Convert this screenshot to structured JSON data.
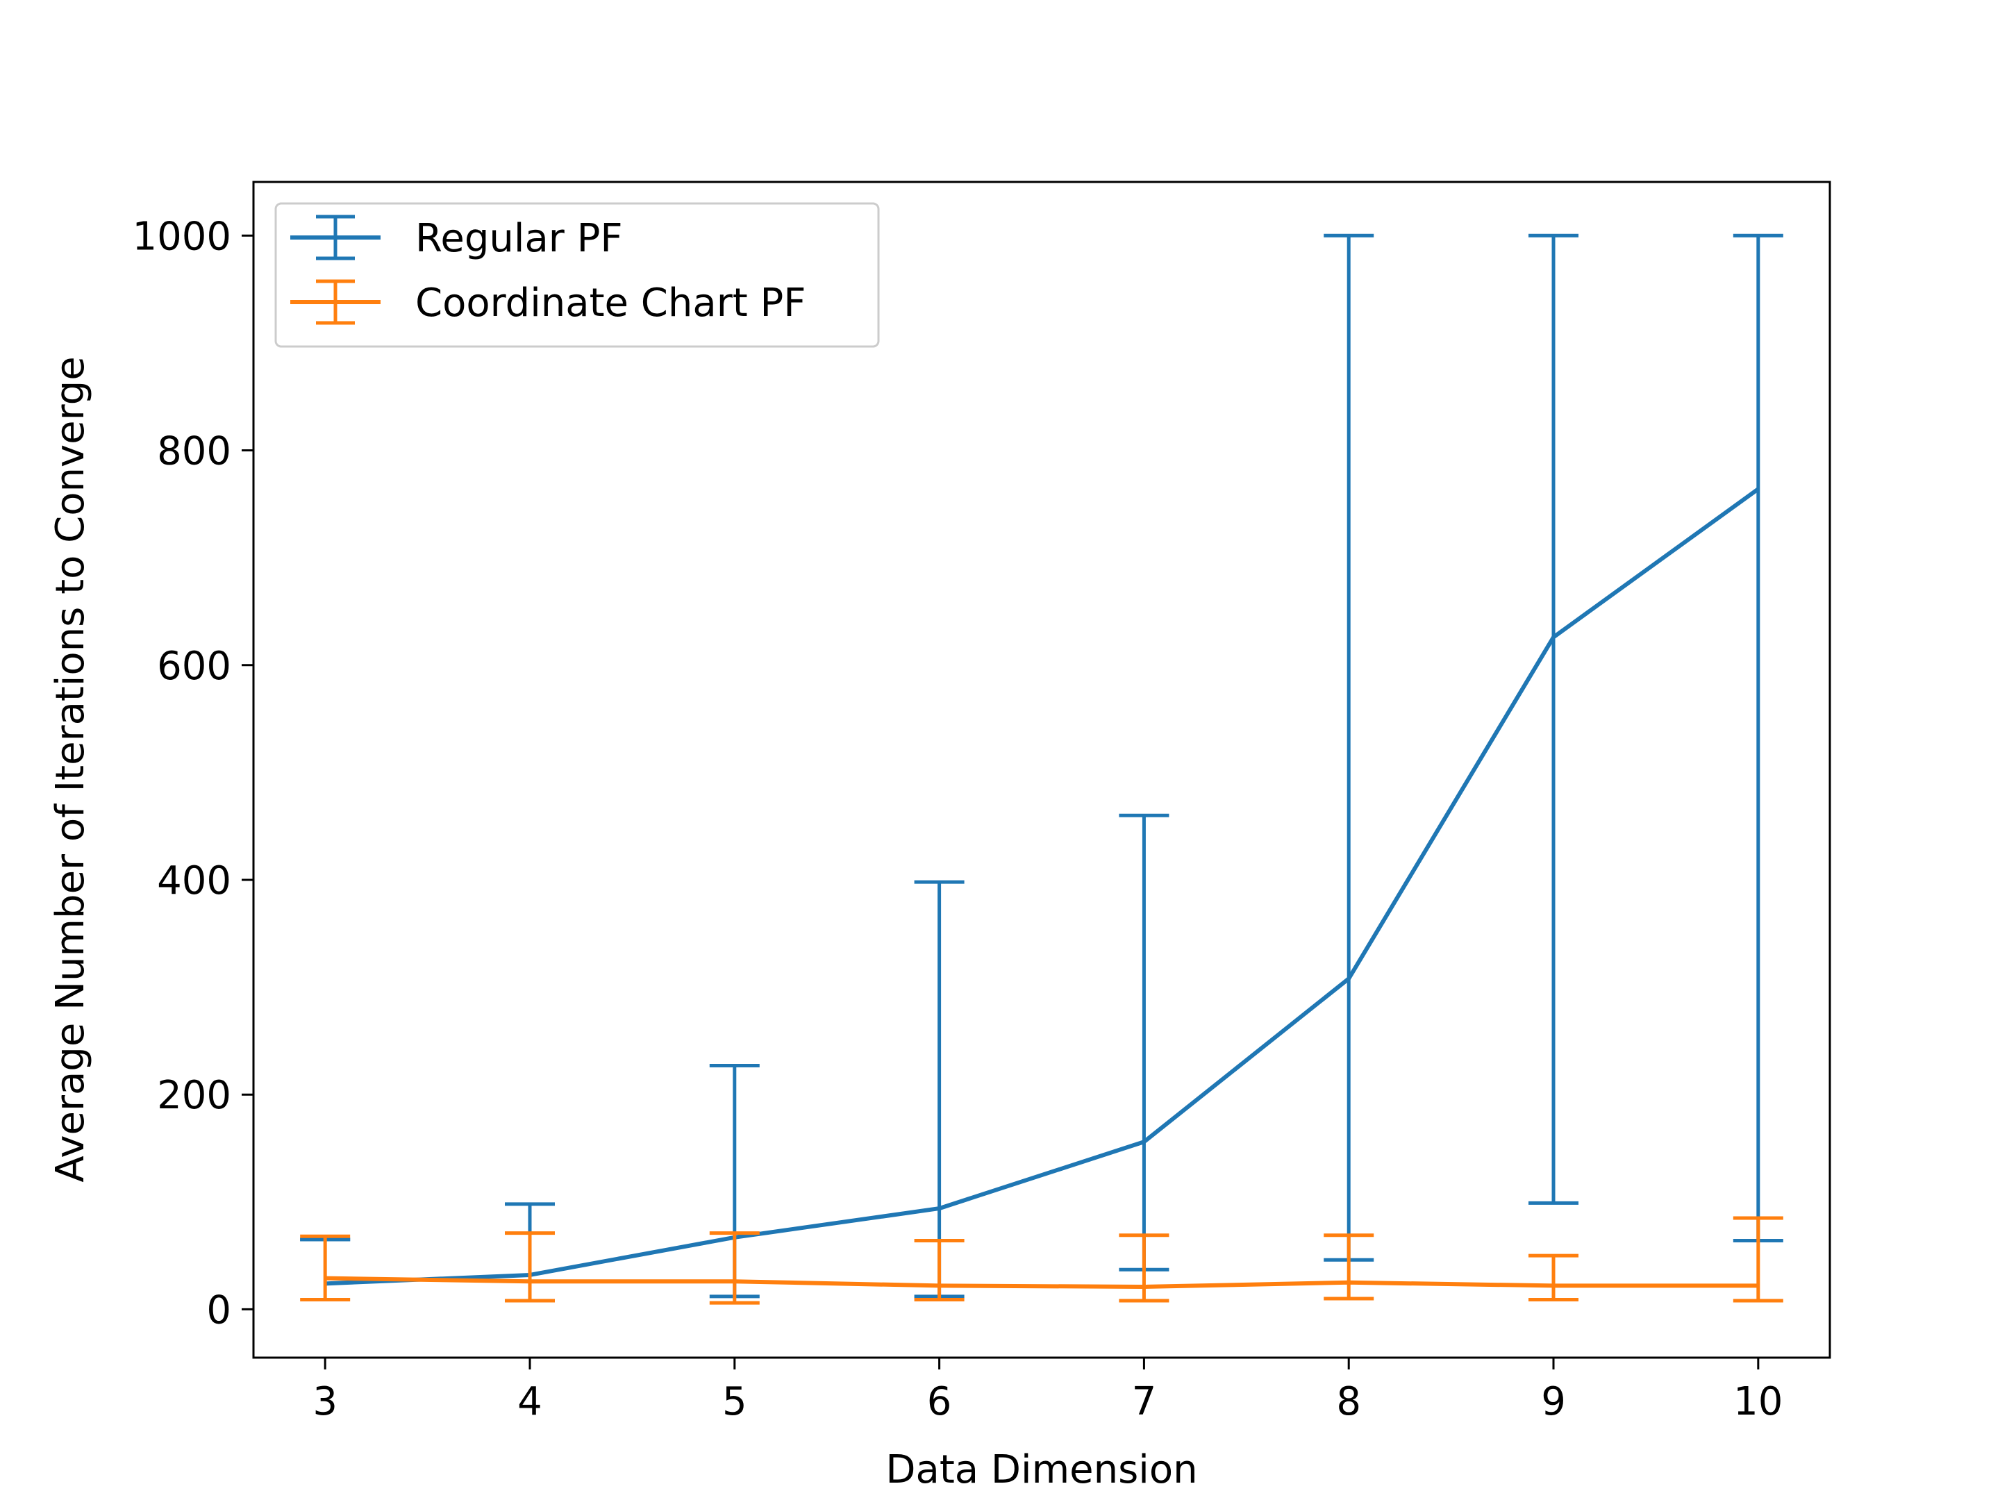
{
  "chart_data": {
    "type": "line",
    "title": "",
    "xlabel": "Data Dimension",
    "ylabel": "Average Number of Iterations to Converge",
    "x": [
      3,
      4,
      5,
      6,
      7,
      8,
      9,
      10
    ],
    "xlim": [
      2.65,
      10.35
    ],
    "ylim": [
      -45,
      1050
    ],
    "xticks": [
      3,
      4,
      5,
      6,
      7,
      8,
      9,
      10
    ],
    "yticks": [
      0,
      200,
      400,
      600,
      800,
      1000
    ],
    "grid": false,
    "legend_position": "top-left",
    "series": [
      {
        "name": "Regular PF",
        "color": "#1f77b4",
        "values": [
          24,
          32,
          67,
          94,
          156,
          308,
          626,
          764
        ],
        "err_low": [
          65,
          8,
          12,
          12,
          37,
          46,
          99,
          64
        ],
        "err_high": [
          65,
          98,
          227,
          398,
          460,
          1000,
          1000,
          1000
        ]
      },
      {
        "name": "Coordinate Chart PF",
        "color": "#ff7f0e",
        "values": [
          29,
          26,
          26,
          22,
          21,
          25,
          22,
          22
        ],
        "err_low": [
          9,
          8,
          6,
          9,
          8,
          10,
          9,
          8
        ],
        "err_high": [
          68,
          71,
          71,
          64,
          69,
          69,
          50,
          85
        ]
      }
    ]
  }
}
